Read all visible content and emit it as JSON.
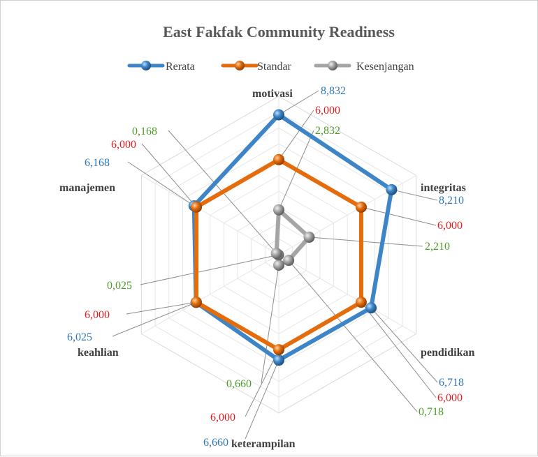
{
  "chart_data": {
    "type": "radar",
    "title": "East Fakfak Community Readiness",
    "categories": [
      "motivasi",
      "integritas",
      "pendidikan",
      "keterampilan",
      "keahlian",
      "manajemen"
    ],
    "scale": {
      "min": 0,
      "max": 10,
      "gridlines": 10
    },
    "legend_position": "top",
    "series": [
      {
        "name": "Rerata",
        "color": "#3d85c6",
        "values": [
          8.832,
          8.21,
          6.718,
          6.66,
          6.025,
          6.168
        ],
        "labels": [
          "8,832",
          "8,210",
          "6,718",
          "6,660",
          "6,025",
          "6,168"
        ]
      },
      {
        "name": "Standar",
        "color": "#e46c0a",
        "values": [
          6.0,
          6.0,
          6.0,
          6.0,
          6.0,
          6.0
        ],
        "labels": [
          "6,000",
          "6,000",
          "6,000",
          "6,000",
          "6,000",
          "6,000"
        ]
      },
      {
        "name": "Kesenjangan",
        "color": "#a5a5a5",
        "values": [
          2.832,
          2.21,
          0.718,
          0.66,
          0.025,
          0.168
        ],
        "labels": [
          "2,832",
          "2,210",
          "0,718",
          "0,660",
          "0,025",
          "0,168"
        ]
      }
    ],
    "label_colors": {
      "Rerata": "#2e75b6",
      "Standar": "#e01b1b",
      "Kesenjangan": "#4e9a2a"
    }
  }
}
